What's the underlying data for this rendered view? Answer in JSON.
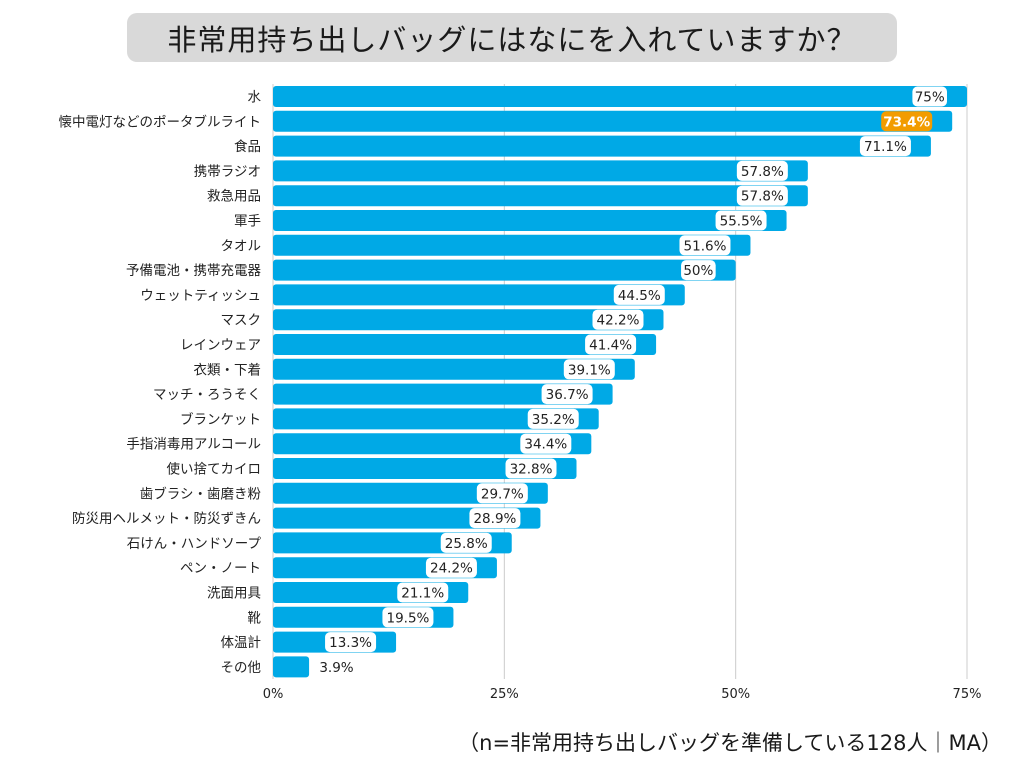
{
  "header": {
    "title": "非常用持ち出しバッグにはなにを入れていますか？"
  },
  "footnote": "（n=非常用持ち出しバッグを準備している128人｜MA）",
  "colors": {
    "bar": "#00a9e6",
    "highlight_label_bg": "#f29c00",
    "grid": "#cccccc",
    "text": "#222222"
  },
  "chart_data": {
    "type": "bar",
    "orientation": "horizontal",
    "title": "非常用持ち出しバッグにはなにを入れていますか？",
    "xlabel": "",
    "ylabel": "",
    "xlim": [
      0,
      75
    ],
    "xticks": [
      0,
      25,
      50,
      75
    ],
    "xtick_labels": [
      "0%",
      "25%",
      "50%",
      "75%"
    ],
    "grid": true,
    "highlight_index": 1,
    "categories": [
      "水",
      "懐中電灯などのポータブルライト",
      "食品",
      "携帯ラジオ",
      "救急用品",
      "軍手",
      "タオル",
      "予備電池・携帯充電器",
      "ウェットティッシュ",
      "マスク",
      "レインウェア",
      "衣類・下着",
      "マッチ・ろうそく",
      "ブランケット",
      "手指消毒用アルコール",
      "使い捨てカイロ",
      "歯ブラシ・歯磨き粉",
      "防災用ヘルメット・防災ずきん",
      "石けん・ハンドソープ",
      "ペン・ノート",
      "洗面用具",
      "靴",
      "体温計",
      "その他"
    ],
    "values": [
      75,
      73.4,
      71.1,
      57.8,
      57.8,
      55.5,
      51.6,
      50,
      44.5,
      42.2,
      41.4,
      39.1,
      36.7,
      35.2,
      34.4,
      32.8,
      29.7,
      28.9,
      25.8,
      24.2,
      21.1,
      19.5,
      13.3,
      3.9
    ],
    "value_labels": [
      "75%",
      "73.4%",
      "71.1%",
      "57.8%",
      "57.8%",
      "55.5%",
      "51.6%",
      "50%",
      "44.5%",
      "42.2%",
      "41.4%",
      "39.1%",
      "36.7%",
      "35.2%",
      "34.4%",
      "32.8%",
      "29.7%",
      "28.9%",
      "25.8%",
      "24.2%",
      "21.1%",
      "19.5%",
      "13.3%",
      "3.9%"
    ]
  }
}
